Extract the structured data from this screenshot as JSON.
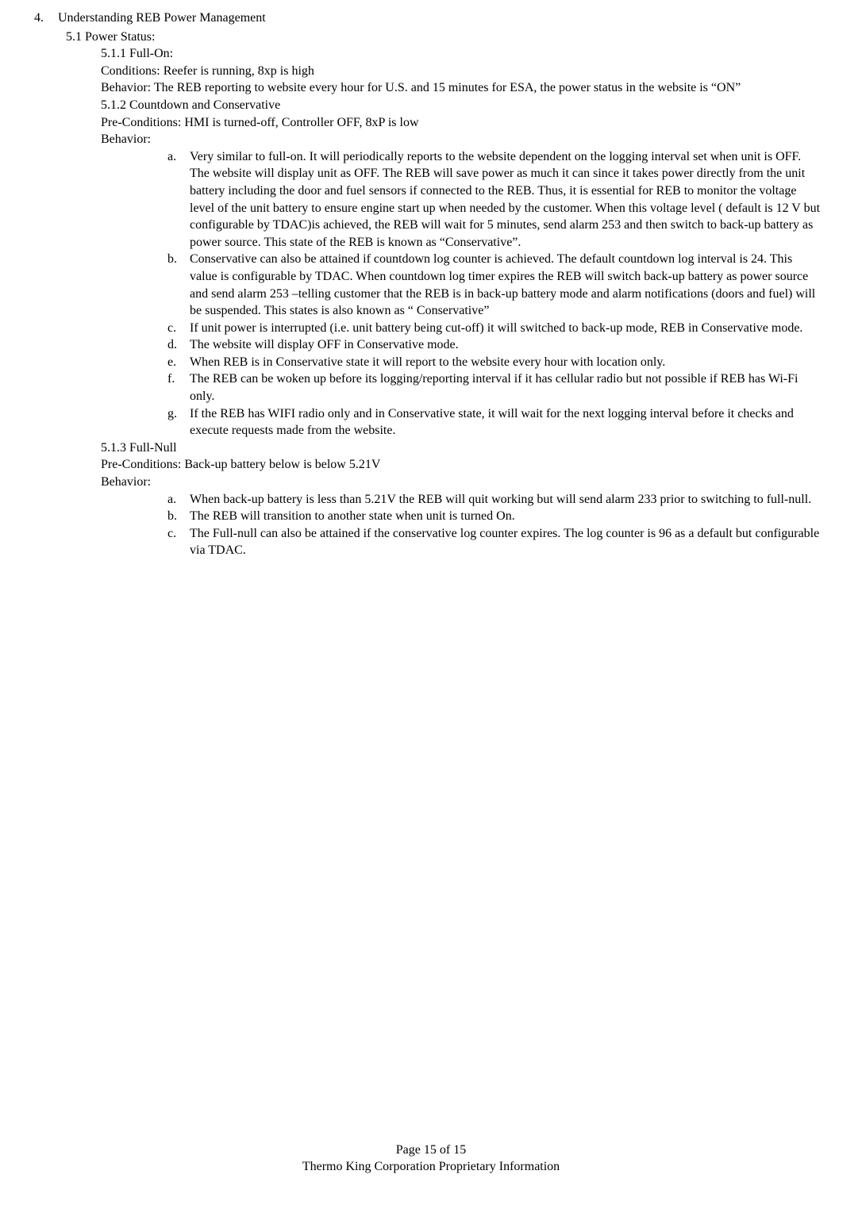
{
  "section": {
    "num": "4.",
    "title": "Understanding REB Power Management"
  },
  "sub": {
    "num": "5.1",
    "title": "Power Status:"
  },
  "s511": {
    "heading": "5.1.1 Full-On:",
    "conditions_label": "Conditions:",
    "conditions_text": "Reefer is running, 8xp is high",
    "behavior_label": "Behavior:",
    "behavior_text": "The REB reporting to website every hour for U.S. and 15 minutes for ESA, the power status in the website is “ON”"
  },
  "s512": {
    "heading": "5.1.2 Countdown and Conservative",
    "precond_label": "Pre-Conditions:",
    "precond_text": " HMI is turned-off, Controller OFF, 8xP is low",
    "behavior_label": "Behavior:",
    "items": {
      "a": "Very similar to full-on. It will periodically reports to the website dependent on the logging interval set when unit is OFF. The website will display unit as OFF. The REB will save power as much it can since it takes power directly from the unit battery including the door and fuel sensors if connected to the REB. Thus, it is essential for REB to monitor the voltage level of the unit battery to ensure engine start up when needed by the customer. When this voltage level ( default is 12 V but configurable by TDAC)is achieved,  the REB will wait for 5 minutes, send alarm 253 and then switch to back-up battery as power source.  This state of the REB is known as “Conservative”.",
      "b": "Conservative can also be attained if countdown log counter is achieved. The default countdown log interval is 24. This value is configurable by TDAC. When countdown log timer expires the REB will switch back-up battery as power source and send alarm 253 –telling customer that the REB is in back-up battery mode and alarm notifications (doors and fuel) will be suspended.  This states is also known as “ Conservative”",
      "c": "If unit power is interrupted (i.e. unit battery being cut-off) it will switched to back-up mode, REB in Conservative mode.",
      "d": "The website will display OFF in Conservative mode.",
      "e": "When REB is in Conservative state it will report to the website every hour with location only.",
      "f": "The REB can be woken up before its logging/reporting interval if it has cellular radio but not possible if REB has Wi-Fi only.",
      "g": "If the REB has WIFI radio only and in Conservative state, it will wait for the next logging interval before it checks and execute requests made from the website."
    }
  },
  "s513": {
    "heading": "5.1.3 Full-Null",
    "precond_label": "Pre-Conditions:",
    "precond_text": "Back-up battery below is below 5.21V",
    "behavior_label": "Behavior:",
    "items": {
      "a": "When back-up battery is less than 5.21V the REB will quit working but will send alarm 233 prior to switching to full-null.",
      "b": "The REB will transition to another state when unit is turned On.",
      "c": "The Full-null can also be attained if the conservative log counter expires. The log counter is 96 as a default but configurable via TDAC."
    }
  },
  "footer": {
    "page": "Page 15 of 15",
    "proprietary": "Thermo King Corporation Proprietary Information"
  },
  "labels": {
    "a": "a.",
    "b": "b.",
    "c": "c.",
    "d": "d.",
    "e": "e.",
    "f": "f.",
    "g": "g."
  }
}
